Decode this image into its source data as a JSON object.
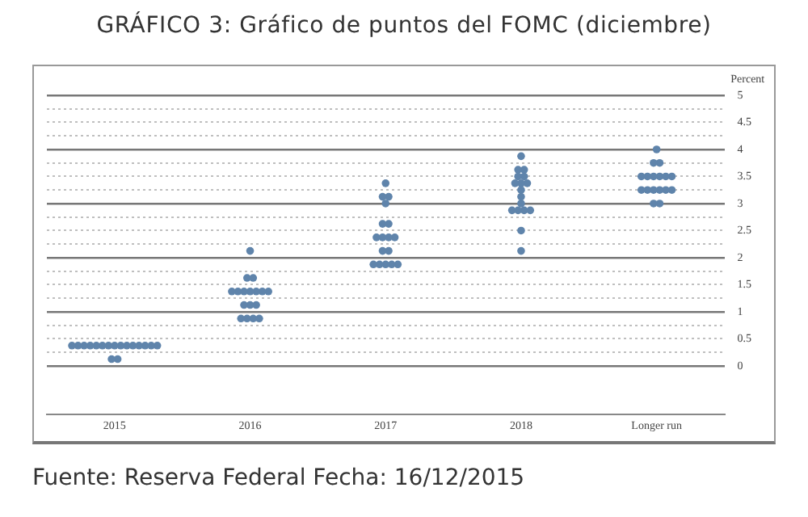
{
  "chart_data": {
    "type": "scatter",
    "title": "GRÁFICO 3: Gráfico de puntos del FOMC (diciembre)",
    "ylabel": "Percent",
    "annotations": [
      "Fuente: Reserva Federal Fecha: 16/12/2015"
    ],
    "categories": [
      "2015",
      "2016",
      "2017",
      "2018",
      "Longer run"
    ],
    "ylim": [
      -0.9,
      5
    ],
    "yticks": [
      0,
      {
        "value": 0.25,
        "label": null
      },
      0.5,
      {
        "value": 0.75,
        "label": null
      },
      1,
      {
        "value": 1.25,
        "label": null
      },
      1.5,
      {
        "value": 1.75,
        "label": null
      },
      2,
      {
        "value": 2.25,
        "label": null
      },
      2.5,
      {
        "value": 2.75,
        "label": null
      },
      3,
      {
        "value": 3.25,
        "label": null
      },
      3.5,
      {
        "value": 3.75,
        "label": null
      },
      4,
      {
        "value": 4.25,
        "label": null
      },
      4.5,
      {
        "value": 4.75,
        "label": null
      },
      5
    ],
    "grid": "y",
    "legend": false,
    "marker": "circle",
    "series": [
      {
        "color": "#5f84ab",
        "values": [
          0.375,
          2.125,
          3.375,
          3.875,
          4.0
        ]
      },
      {
        "color": "#5f84ab",
        "values": [
          0.375,
          1.625,
          3.125,
          3.625,
          3.75
        ]
      },
      {
        "color": "#5f84ab",
        "values": [
          0.375,
          1.625,
          3.125,
          3.625,
          3.75
        ]
      },
      {
        "color": "#5f84ab",
        "values": [
          0.375,
          1.375,
          3.0,
          3.5,
          3.5
        ]
      },
      {
        "color": "#5f84ab",
        "values": [
          0.375,
          1.375,
          2.625,
          3.5,
          3.5
        ]
      },
      {
        "color": "#5f84ab",
        "values": [
          0.375,
          1.375,
          2.625,
          3.375,
          3.5
        ]
      },
      {
        "color": "#5f84ab",
        "values": [
          0.375,
          1.375,
          2.375,
          3.375,
          3.5
        ]
      },
      {
        "color": "#5f84ab",
        "values": [
          0.375,
          1.375,
          2.375,
          3.375,
          3.5
        ]
      },
      {
        "color": "#5f84ab",
        "values": [
          0.375,
          1.375,
          2.375,
          3.25,
          3.5
        ]
      },
      {
        "color": "#5f84ab",
        "values": [
          0.375,
          1.375,
          2.375,
          3.125,
          3.25
        ]
      },
      {
        "color": "#5f84ab",
        "values": [
          0.375,
          1.125,
          2.125,
          3.0,
          3.25
        ]
      },
      {
        "color": "#5f84ab",
        "values": [
          0.375,
          1.125,
          2.125,
          2.875,
          3.25
        ]
      },
      {
        "color": "#5f84ab",
        "values": [
          0.375,
          1.125,
          1.875,
          2.875,
          3.25
        ]
      },
      {
        "color": "#5f84ab",
        "values": [
          0.375,
          0.875,
          1.875,
          2.875,
          3.25
        ]
      },
      {
        "color": "#5f84ab",
        "values": [
          0.375,
          0.875,
          1.875,
          2.875,
          3.25
        ]
      },
      {
        "color": "#5f84ab",
        "values": [
          0.125,
          0.875,
          1.875,
          2.5,
          3.0
        ]
      },
      {
        "color": "#5f84ab",
        "values": [
          0.125,
          0.875,
          1.875,
          2.125,
          3.0
        ]
      }
    ]
  }
}
